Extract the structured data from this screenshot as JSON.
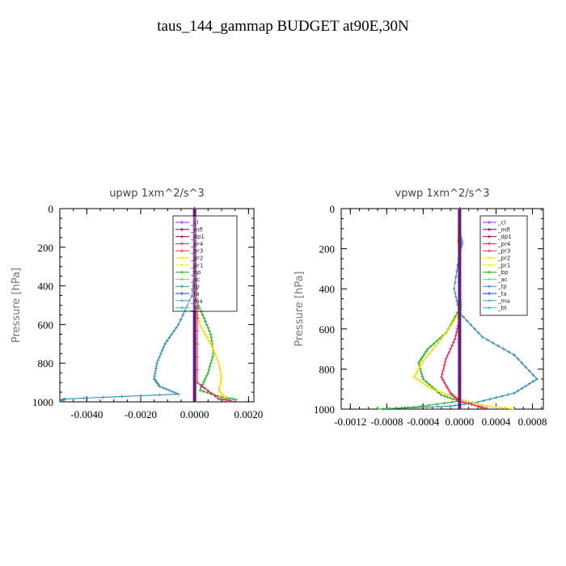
{
  "title": "taus_144_gammap  BUDGET at90E,30N",
  "legend_names": [
    "_cl",
    "_mfl",
    "_dp1",
    "_pr4",
    "_pr3",
    "_pr2",
    "_pr1",
    "_bp",
    "_ac",
    "_tp",
    "_ta",
    "_ma",
    "_bt"
  ],
  "series_colors": {
    "_cl": "#a020f0",
    "_mfl": "#800080",
    "_dp1": "#8b0a50",
    "_pr4": "#e0204a",
    "_pr3": "#ff3030",
    "_pr2": "#ffd700",
    "_pr1": "#eeee00",
    "_bp": "#22b022",
    "_ac": "#66dd66",
    "_tp": "#2b8ab8",
    "_ta": "#1040c0",
    "_ma": "#40a8d8",
    "_bt": "#00d0d0"
  },
  "chart_data": [
    {
      "type": "line",
      "title": "upwp   1xm^2/s^3",
      "ylabel": "Pressure  [hPa]",
      "xlim": [
        -0.005,
        0.0022
      ],
      "ylim": [
        1000,
        0
      ],
      "y_inverted": true,
      "xticks": [
        "-0.0040",
        "-0.0020",
        "0.0000",
        "0.0020"
      ],
      "xtick_values": [
        -0.004,
        -0.002,
        0.0,
        0.002
      ],
      "yticks": [
        "0",
        "200",
        "400",
        "600",
        "800",
        "1000"
      ],
      "ytick_values": [
        0,
        200,
        400,
        600,
        800,
        1000
      ],
      "legend_position": "top-right",
      "series": [
        {
          "name": "_tp",
          "points": [
            [
              0,
              0
            ],
            [
              0,
              300
            ],
            [
              -0.0001,
              450
            ],
            [
              -0.0006,
              600
            ],
            [
              -0.0011,
              700
            ],
            [
              -0.0014,
              800
            ],
            [
              -0.0015,
              880
            ],
            [
              -0.0013,
              920
            ],
            [
              -0.0006,
              960
            ],
            [
              -0.0048,
              985
            ],
            [
              -0.005,
              995
            ]
          ]
        },
        {
          "name": "_bp",
          "points": [
            [
              0,
              0
            ],
            [
              0,
              450
            ],
            [
              0.0003,
              550
            ],
            [
              0.0006,
              650
            ],
            [
              0.0007,
              750
            ],
            [
              0.0005,
              850
            ],
            [
              0.0002,
              940
            ],
            [
              0.001,
              975
            ],
            [
              0.0016,
              990
            ]
          ]
        },
        {
          "name": "_pr2",
          "points": [
            [
              0,
              0
            ],
            [
              0,
              500
            ],
            [
              0.0002,
              600
            ],
            [
              0.0006,
              700
            ],
            [
              0.0009,
              800
            ],
            [
              0.001,
              880
            ],
            [
              0.0009,
              940
            ],
            [
              0.0012,
              990
            ]
          ]
        },
        {
          "name": "_ta",
          "points": [
            [
              0,
              0
            ],
            [
              0,
              1000
            ]
          ]
        },
        {
          "name": "_mfl",
          "points": [
            [
              0,
              0
            ],
            [
              0,
              1000
            ]
          ]
        },
        {
          "name": "_pr4",
          "points": [
            [
              0,
              0
            ],
            [
              0.0001,
              500
            ],
            [
              0.0001,
              900
            ],
            [
              0.0009,
              985
            ],
            [
              0.0014,
              995
            ]
          ]
        },
        {
          "name": "_dp1",
          "points": [
            [
              0,
              0
            ],
            [
              0,
              1000
            ]
          ]
        }
      ]
    },
    {
      "type": "line",
      "title": "vpwp   1xm^2/s^3",
      "ylabel": "Pressure  [hPa]",
      "xlim": [
        -0.0013,
        0.00092
      ],
      "ylim": [
        1000,
        0
      ],
      "y_inverted": true,
      "xticks": [
        "-0.0012",
        "-0.0008",
        "-0.0004",
        "0.0000",
        "0.0004",
        "0.0008"
      ],
      "xtick_values": [
        -0.0012,
        -0.0008,
        -0.0004,
        0.0,
        0.0004,
        0.0008
      ],
      "yticks": [
        "0",
        "200",
        "400",
        "600",
        "800",
        "1000"
      ],
      "ytick_values": [
        0,
        200,
        400,
        600,
        800,
        1000
      ],
      "legend_position": "top-right",
      "series": [
        {
          "name": "_tp",
          "points": [
            [
              0,
              0
            ],
            [
              0,
              120
            ],
            [
              3e-05,
              170
            ],
            [
              0,
              220
            ],
            [
              -6e-05,
              400
            ],
            [
              0,
              520
            ],
            [
              0.00025,
              640
            ],
            [
              0.0006,
              730
            ],
            [
              0.00085,
              850
            ],
            [
              0.0006,
              920
            ],
            [
              0.0002,
              965
            ],
            [
              -0.0001,
              985
            ],
            [
              -0.0009,
              1000
            ]
          ]
        },
        {
          "name": "_bp",
          "points": [
            [
              0,
              0
            ],
            [
              0,
              500
            ],
            [
              -0.00015,
              620
            ],
            [
              -0.00035,
              700
            ],
            [
              -0.00045,
              770
            ],
            [
              -0.0004,
              850
            ],
            [
              -0.0002,
              930
            ],
            [
              0,
              960
            ],
            [
              -0.0005,
              990
            ],
            [
              -0.0009,
              1000
            ]
          ]
        },
        {
          "name": "_pr2",
          "points": [
            [
              0,
              0
            ],
            [
              -2e-05,
              160
            ],
            [
              0,
              200
            ],
            [
              0,
              520
            ],
            [
              -0.0002,
              650
            ],
            [
              -0.0004,
              760
            ],
            [
              -0.0005,
              840
            ],
            [
              -0.0003,
              900
            ],
            [
              0,
              950
            ],
            [
              0.0003,
              985
            ],
            [
              0.0006,
              1000
            ]
          ]
        },
        {
          "name": "_ac",
          "points": [
            [
              0,
              0
            ],
            [
              0,
              400
            ],
            [
              2e-05,
              480
            ],
            [
              0,
              560
            ],
            [
              0,
              1000
            ]
          ]
        },
        {
          "name": "_pr4",
          "points": [
            [
              0,
              0
            ],
            [
              0,
              550
            ],
            [
              -5e-05,
              650
            ],
            [
              -0.00015,
              750
            ],
            [
              -0.0002,
              840
            ],
            [
              -0.0001,
              920
            ],
            [
              0,
              960
            ],
            [
              0.0002,
              985
            ],
            [
              0.0003,
              1000
            ]
          ]
        },
        {
          "name": "_ta",
          "points": [
            [
              0,
              0
            ],
            [
              0,
              1000
            ]
          ]
        },
        {
          "name": "_mfl",
          "points": [
            [
              0,
              0
            ],
            [
              0,
              1000
            ]
          ]
        },
        {
          "name": "_dp1",
          "points": [
            [
              0,
              0
            ],
            [
              0,
              1000
            ]
          ]
        }
      ]
    }
  ]
}
